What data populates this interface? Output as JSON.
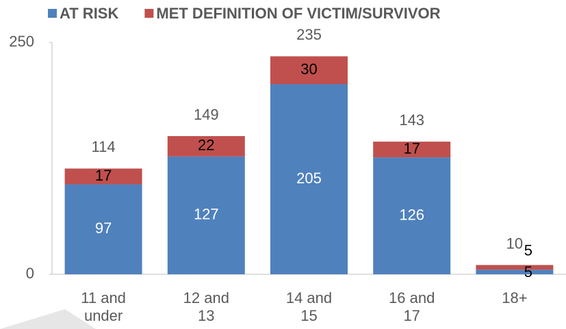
{
  "chart_data": {
    "type": "stacked_bar",
    "categories": [
      "11 and under",
      "12 and 13",
      "14 and 15",
      "16 and 17",
      "18+"
    ],
    "series": [
      {
        "name": "AT RISK",
        "color": "#4f81bd",
        "values": [
          97,
          127,
          205,
          126,
          5
        ]
      },
      {
        "name": "MET DEFINITION OF VICTIM/SURVIVOR",
        "color": "#c0504d",
        "values": [
          17,
          22,
          30,
          17,
          5
        ]
      }
    ],
    "totals": [
      114,
      149,
      235,
      143,
      10
    ],
    "ylim": [
      0,
      250
    ],
    "yticks": [
      0,
      250
    ],
    "grid": false,
    "legend": "top"
  }
}
